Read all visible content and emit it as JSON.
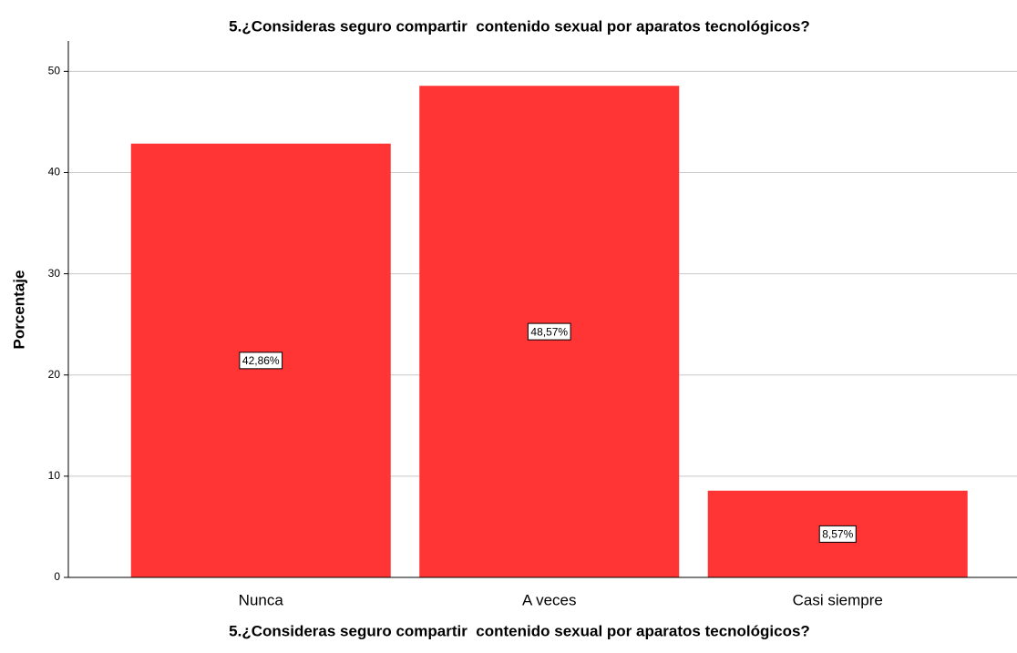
{
  "chart_data": {
    "type": "bar",
    "title": "5.¿Consideras seguro compartir  contenido sexual por aparatos tecnológicos?",
    "x_label": "5.¿Consideras seguro compartir  contenido sexual por aparatos tecnológicos?",
    "y_label": "Porcentaje",
    "categories": [
      "Nunca",
      "A veces",
      "Casi siempre"
    ],
    "values": [
      42.86,
      48.57,
      8.57
    ],
    "value_labels": [
      "42,86%",
      "48,57%",
      "8,57%"
    ],
    "color": "#ff3535",
    "ylim": [
      0,
      53
    ],
    "yticks": [
      0,
      10,
      20,
      30,
      40,
      50
    ],
    "grid": true
  }
}
